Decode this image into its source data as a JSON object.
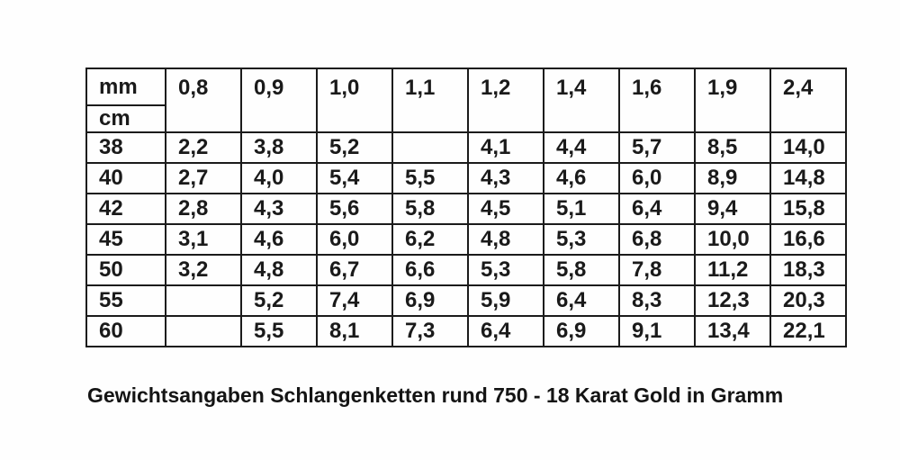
{
  "page": {
    "background": "#fefefe",
    "border_color": "#1b1b1b",
    "text_color": "#1a1a1a"
  },
  "table": {
    "unit_row_header": "mm",
    "unit_col_header": "cm",
    "columns": [
      "0,8",
      "0,9",
      "1,0",
      "1,1",
      "1,2",
      "1,4",
      "1,6",
      "1,9",
      "2,4"
    ],
    "rows": [
      {
        "label": "38",
        "values": [
          "2,2",
          "3,8",
          "5,2",
          "",
          "4,1",
          "4,4",
          "5,7",
          "8,5",
          "14,0"
        ]
      },
      {
        "label": "40",
        "values": [
          "2,7",
          "4,0",
          "5,4",
          "5,5",
          "4,3",
          "4,6",
          "6,0",
          "8,9",
          "14,8"
        ]
      },
      {
        "label": "42",
        "values": [
          "2,8",
          "4,3",
          "5,6",
          "5,8",
          "4,5",
          "5,1",
          "6,4",
          "9,4",
          "15,8"
        ]
      },
      {
        "label": "45",
        "values": [
          "3,1",
          "4,6",
          "6,0",
          "6,2",
          "4,8",
          "5,3",
          "6,8",
          "10,0",
          "16,6"
        ]
      },
      {
        "label": "50",
        "values": [
          "3,2",
          "4,8",
          "6,7",
          "6,6",
          "5,3",
          "5,8",
          "7,8",
          "11,2",
          "18,3"
        ]
      },
      {
        "label": "55",
        "values": [
          "",
          "5,2",
          "7,4",
          "6,9",
          "5,9",
          "6,4",
          "8,3",
          "12,3",
          "20,3"
        ]
      },
      {
        "label": "60",
        "values": [
          "",
          "5,5",
          "8,1",
          "7,3",
          "6,4",
          "6,9",
          "9,1",
          "13,4",
          "22,1"
        ]
      }
    ]
  },
  "caption": "Gewichtsangaben Schlangenketten rund 750 - 18 Karat Gold in Gramm"
}
